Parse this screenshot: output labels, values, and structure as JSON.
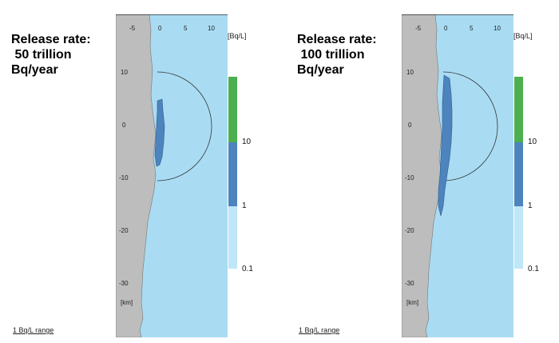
{
  "panels": [
    {
      "release_label": [
        "Release rate:",
        " 50 trillion",
        "Bq/year"
      ],
      "unit_label": "[Bq/L]",
      "colorbar_ticks": [
        "10",
        "1",
        "0.1"
      ],
      "x_ticks": [
        "-5",
        "0",
        "5",
        "10"
      ],
      "y_ticks": [
        "10",
        "0",
        "-10",
        "-20",
        "-30"
      ],
      "km_label": "[km]",
      "range_note": "1 Bq/L range"
    },
    {
      "release_label": [
        "Release rate:",
        " 100 trillion",
        "Bq/year"
      ],
      "unit_label": "[Bq/L]",
      "colorbar_ticks": [
        "10",
        "1",
        "0.1"
      ],
      "x_ticks": [
        "-5",
        "0",
        "5",
        "10"
      ],
      "y_ticks": [
        "10",
        "0",
        "-10",
        "-20",
        "-30"
      ],
      "km_label": "[km]",
      "range_note": "1 Bq/L range"
    }
  ],
  "colors": {
    "sea": "#a9dcf3",
    "land": "#bdbdbd",
    "plume": "#4d84bd",
    "high": "#4caf50",
    "low": "#bfe7f7"
  }
}
